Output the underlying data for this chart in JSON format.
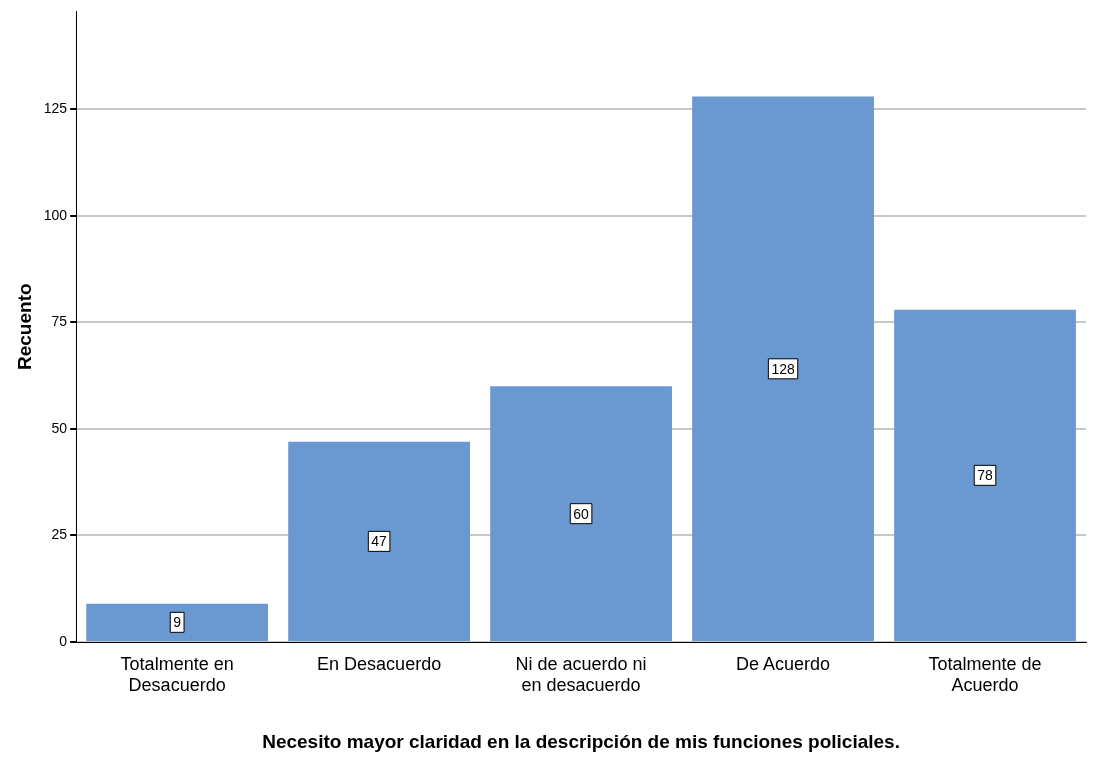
{
  "chart_data": {
    "type": "bar",
    "xlabel": "Necesito mayor claridad en la descripción de mis funciones policiales.",
    "ylabel": "Recuento",
    "categories": [
      "Totalmente en Desacuerdo",
      "En Desacuerdo",
      "Ni de acuerdo ni en desacuerdo",
      "De Acuerdo",
      "Totalmente de Acuerdo"
    ],
    "values": [
      9,
      47,
      60,
      128,
      78
    ],
    "color": "#6a98d0",
    "ylim": [
      0,
      148
    ],
    "yticks": [
      0,
      25,
      50,
      75,
      100,
      125
    ],
    "grid": "y",
    "data_labels": true,
    "legend": false
  }
}
